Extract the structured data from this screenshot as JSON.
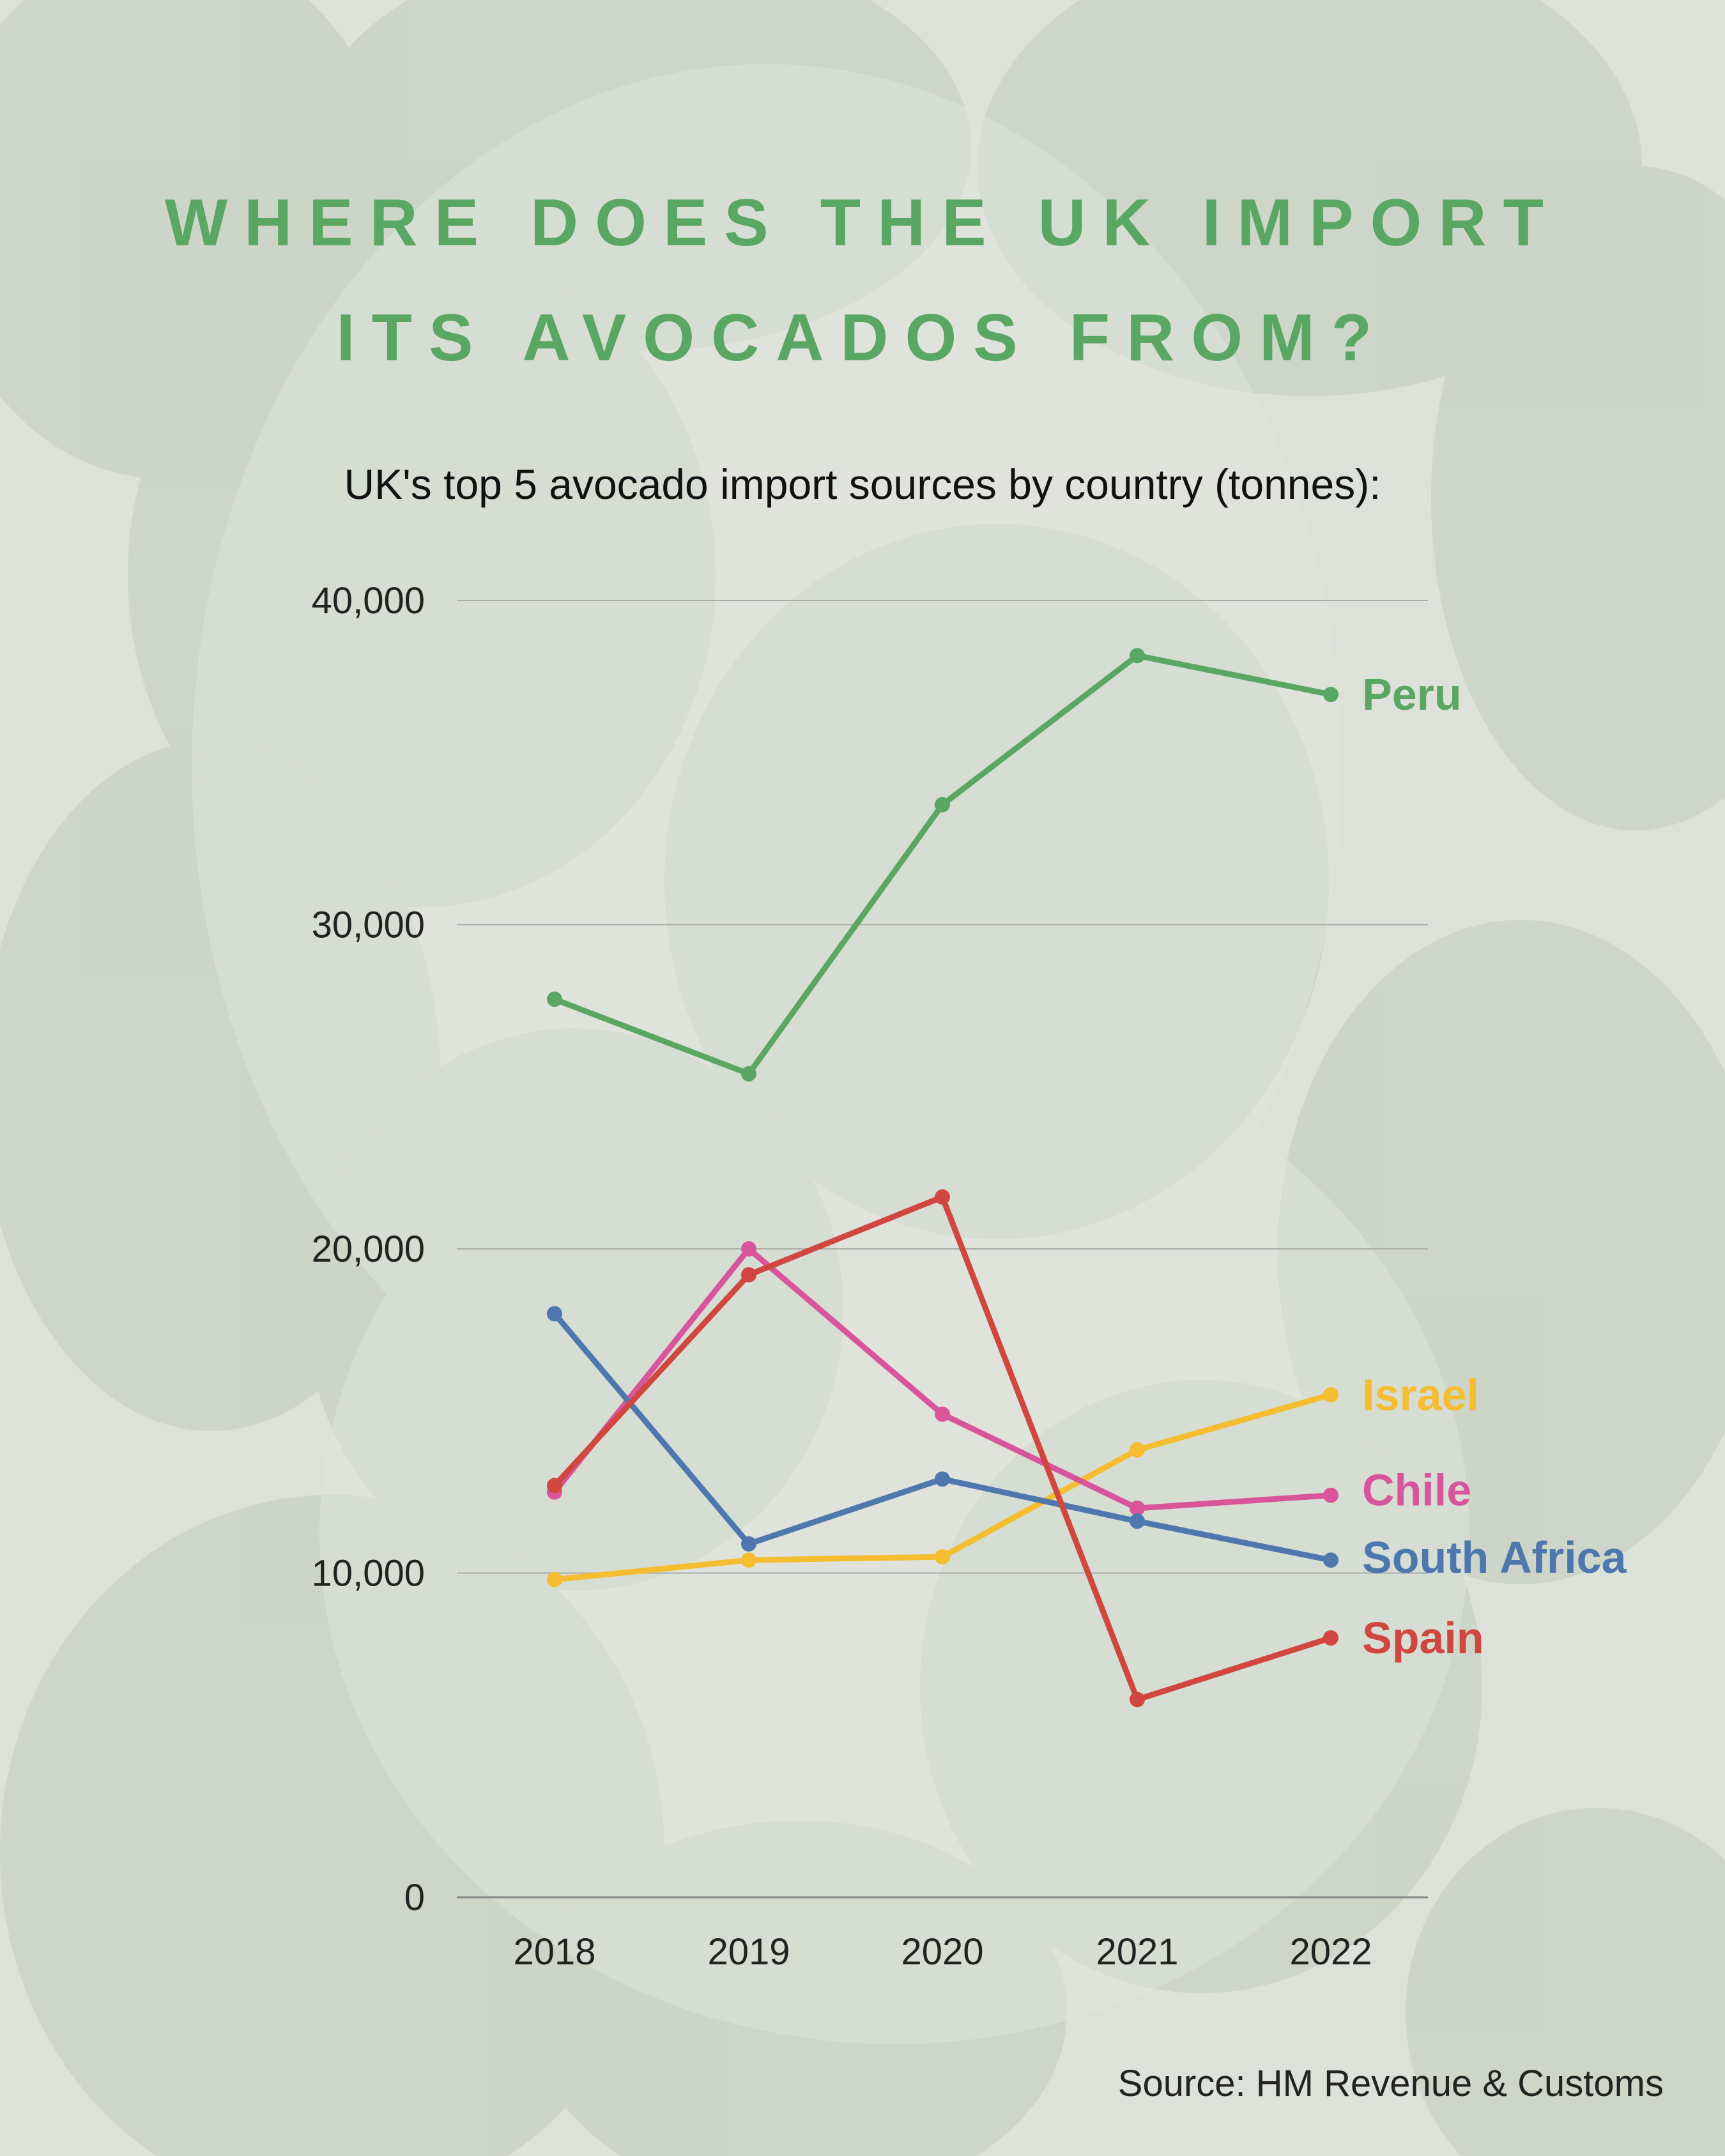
{
  "title": {
    "line1": "WHERE DOES THE UK IMPORT",
    "line2": "ITS AVOCADOS FROM?"
  },
  "subtitle": "UK's top 5 avocado import sources by country (tonnes):",
  "source": "Source: HM Revenue & Customs",
  "colors": {
    "title": "#5aa663",
    "grid": "#9a9a9a"
  },
  "chart_data": {
    "type": "line",
    "x": [
      "2018",
      "2019",
      "2020",
      "2021",
      "2022"
    ],
    "ylim": [
      0,
      40000
    ],
    "yticks": [
      0,
      10000,
      20000,
      30000,
      40000
    ],
    "ytick_labels": [
      "0",
      "10,000",
      "20,000",
      "30,000",
      "40,000"
    ],
    "grid": true,
    "legend": "right end labels",
    "series": [
      {
        "name": "Peru",
        "color": "#5aa663",
        "values": [
          27700,
          25400,
          33700,
          38300,
          37100
        ]
      },
      {
        "name": "Israel",
        "color": "#f5bd2f",
        "values": [
          9800,
          10400,
          10500,
          13800,
          15500
        ]
      },
      {
        "name": "Chile",
        "color": "#d9559b",
        "values": [
          12500,
          20000,
          14900,
          12000,
          12400
        ]
      },
      {
        "name": "South Africa",
        "color": "#4d77ad",
        "values": [
          18000,
          10900,
          12900,
          11600,
          10400
        ]
      },
      {
        "name": "Spain",
        "color": "#d1463f",
        "values": [
          12700,
          19200,
          21600,
          6100,
          8000
        ]
      }
    ]
  }
}
